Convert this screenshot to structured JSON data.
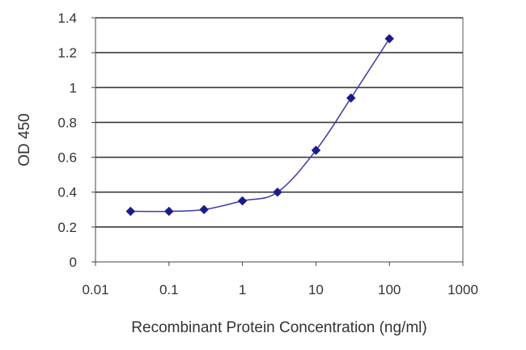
{
  "chart_data": {
    "type": "line",
    "title": "",
    "xlabel": "Recombinant Protein Concentration (ng/ml)",
    "ylabel": "OD 450",
    "x_scale": "log",
    "xlim": [
      0.01,
      1000
    ],
    "ylim": [
      0,
      1.4
    ],
    "x_ticks": [
      "0.01",
      "0.1",
      "1",
      "10",
      "100",
      "1000"
    ],
    "y_ticks": [
      "0",
      "0.2",
      "0.4",
      "0.6",
      "0.8",
      "1",
      "1.2",
      "1.4"
    ],
    "grid": "horizontal",
    "legend": "none",
    "series": [
      {
        "x": [
          0.03,
          0.1,
          0.3,
          1,
          3,
          10,
          30,
          100
        ],
        "y": [
          0.29,
          0.29,
          0.3,
          0.35,
          0.4,
          0.64,
          0.94,
          1.28
        ],
        "color": "#1b1b8a",
        "marker": "diamond"
      }
    ]
  }
}
